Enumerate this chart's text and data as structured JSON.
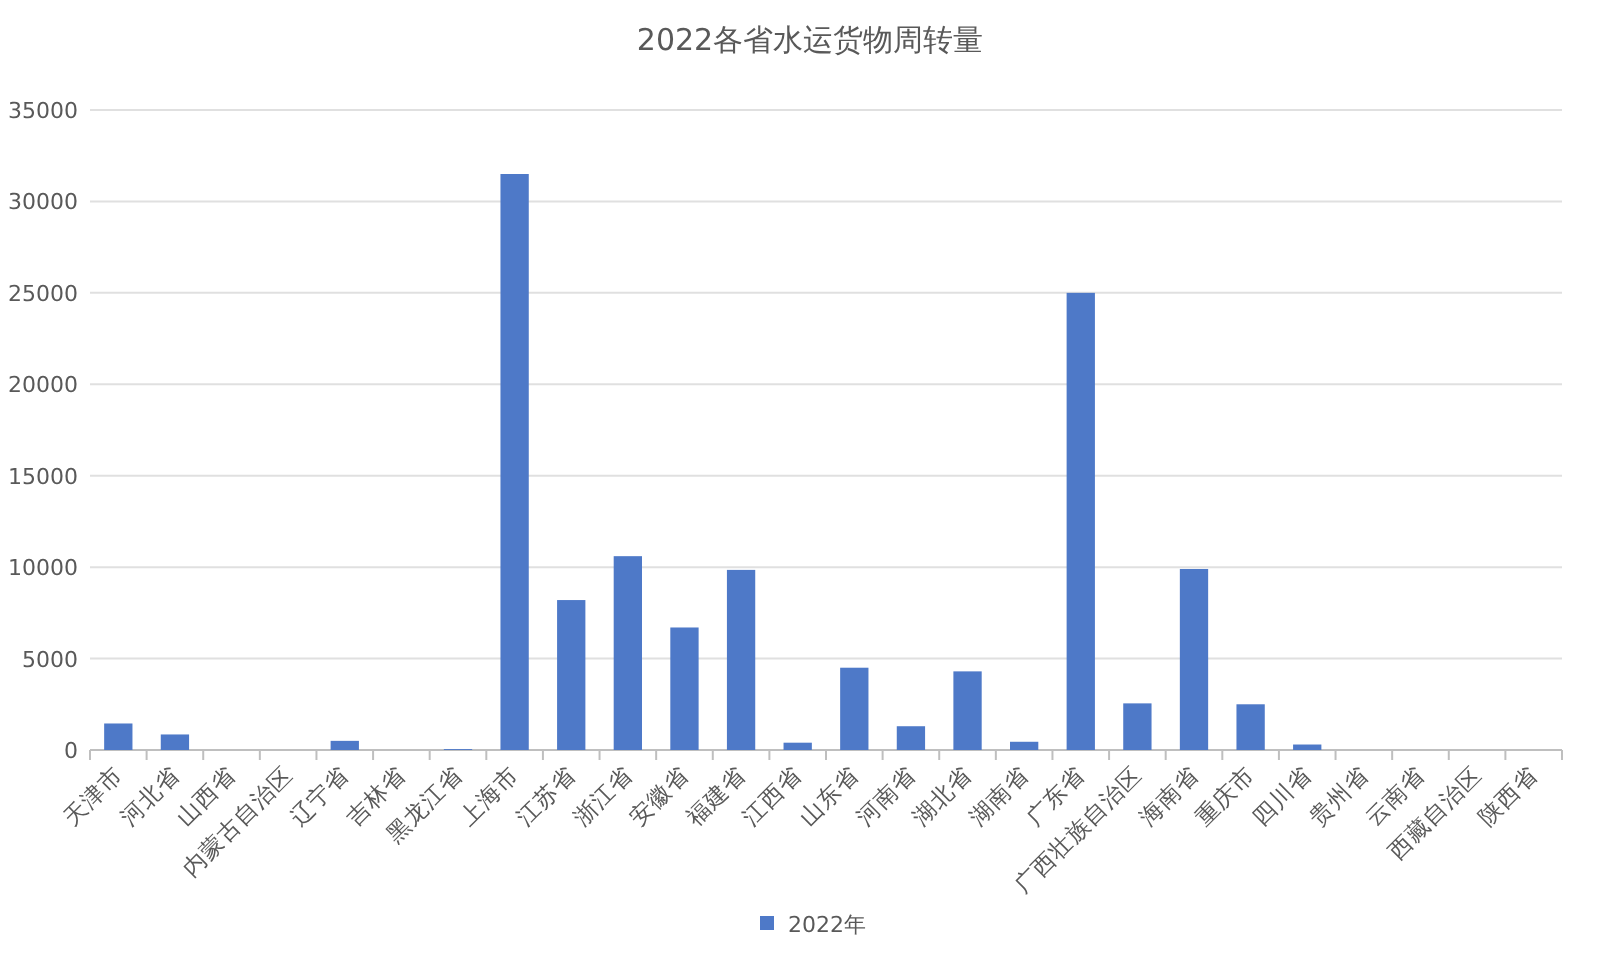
{
  "chart_data": {
    "type": "bar",
    "title": "2022各省水运货物周转量",
    "categories": [
      "天津市",
      "河北省",
      "山西省",
      "内蒙古自治区",
      "辽宁省",
      "吉林省",
      "黑龙江省",
      "上海市",
      "江苏省",
      "浙江省",
      "安徽省",
      "福建省",
      "江西省",
      "山东省",
      "河南省",
      "湖北省",
      "湖南省",
      "广东省",
      "广西壮族自治区",
      "海南省",
      "重庆市",
      "四川省",
      "贵州省",
      "云南省",
      "西藏自治区",
      "陕西省"
    ],
    "series": [
      {
        "name": "2022年",
        "color": "#4e79c8",
        "values": [
          1450,
          850,
          0,
          0,
          500,
          0,
          50,
          31500,
          8200,
          10600,
          6700,
          9850,
          400,
          4500,
          1300,
          4300,
          450,
          25000,
          2550,
          9900,
          2500,
          300,
          0,
          0,
          0,
          0
        ]
      }
    ],
    "ylim": [
      0,
      35000
    ],
    "yticks": [
      0,
      5000,
      10000,
      15000,
      20000,
      25000,
      30000,
      35000
    ],
    "grid": "y",
    "legend": "bottom"
  }
}
